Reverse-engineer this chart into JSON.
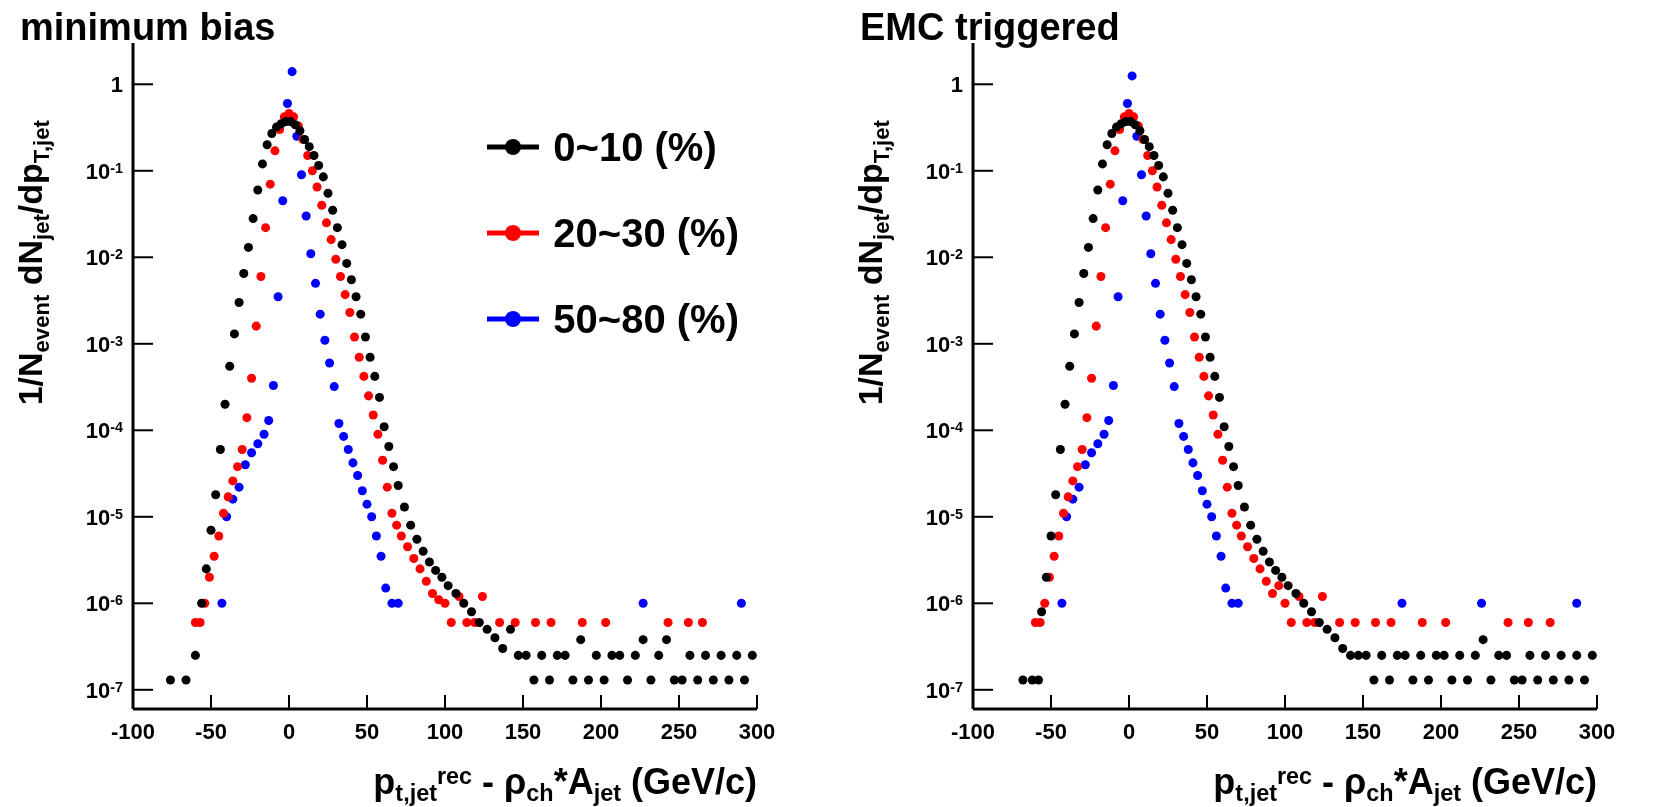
{
  "chart_data": [
    {
      "type": "scatter",
      "title": "minimum bias",
      "xlabel": "p$_{t,jet}$$^{rec}$ - ρ$_{ch}$*A$_{jet}$ (GeV/c)",
      "ylabel": "1/N$_{event}$ dN$_{jet}$/dp$_{T,jet}$",
      "log": "y",
      "marker": "circle",
      "legend": "top right",
      "xlim": [
        -100,
        300
      ],
      "xticks": [
        -100,
        -50,
        0,
        50,
        100,
        150,
        200,
        250,
        300
      ],
      "ylim": [
        6e-08,
        3
      ],
      "yticks": [
        {
          "value": 1e-07,
          "label": "10$^{-7}$"
        },
        {
          "value": 1e-06,
          "label": "10$^{-6}$"
        },
        {
          "value": 1e-05,
          "label": "10$^{-5}$"
        },
        {
          "value": 0.0001,
          "label": "10$^{-4}$"
        },
        {
          "value": 0.001,
          "label": "10$^{-3}$"
        },
        {
          "value": 0.01,
          "label": "10$^{-2}$"
        },
        {
          "value": 0.1,
          "label": "10$^{-1}$"
        },
        1
      ],
      "series": [
        {
          "name": "0~10 (%)",
          "color": "#000000",
          "x": [
            -76,
            -66,
            -60,
            -56,
            -53,
            -50,
            -47,
            -44,
            -41,
            -38,
            -35,
            -32,
            -29,
            -26,
            -23,
            -20,
            -17,
            -14,
            -11,
            -8,
            -5,
            -2,
            1,
            4,
            7,
            10,
            13,
            16,
            19,
            22,
            25,
            28,
            31,
            34,
            37,
            40,
            43,
            46,
            49,
            52,
            55,
            58,
            61,
            64,
            67,
            70,
            74,
            78,
            82,
            86,
            90,
            94,
            98,
            102,
            107,
            112,
            117,
            122,
            127,
            132,
            137,
            142,
            147,
            152,
            157,
            162,
            167,
            172,
            177,
            182,
            187,
            192,
            197,
            202,
            207,
            212,
            217,
            222,
            227,
            232,
            237,
            242,
            247,
            252,
            257,
            262,
            267,
            272,
            277,
            282,
            287,
            292,
            297
          ],
          "values": [
            1.3e-07,
            1.3e-07,
            2.5e-07,
            1e-06,
            2.5e-06,
            7e-06,
            1.8e-05,
            6e-05,
            0.0002,
            0.00055,
            0.0013,
            0.003,
            0.0065,
            0.013,
            0.028,
            0.06,
            0.12,
            0.2,
            0.27,
            0.32,
            0.35,
            0.37,
            0.37,
            0.34,
            0.29,
            0.23,
            0.19,
            0.15,
            0.115,
            0.085,
            0.055,
            0.035,
            0.022,
            0.014,
            0.0085,
            0.0055,
            0.0035,
            0.0022,
            0.0012,
            0.0007,
            0.00042,
            0.00024,
            0.00011,
            6.5e-05,
            3.8e-05,
            2.3e-05,
            1.3e-05,
            8e-06,
            5.5e-06,
            4e-06,
            3e-06,
            2.4e-06,
            2e-06,
            1.6e-06,
            1.3e-06,
            1e-06,
            8e-07,
            6e-07,
            5e-07,
            4e-07,
            3e-07,
            5e-07,
            2.5e-07,
            2.5e-07,
            1.3e-07,
            2.5e-07,
            1.3e-07,
            2.5e-07,
            2.5e-07,
            1.3e-07,
            3.8e-07,
            1.3e-07,
            2.5e-07,
            1.3e-07,
            2.5e-07,
            2.5e-07,
            1.3e-07,
            2.5e-07,
            3.8e-07,
            1.3e-07,
            2.5e-07,
            3.8e-07,
            1.3e-07,
            1.3e-07,
            2.5e-07,
            1.3e-07,
            2.5e-07,
            1.3e-07,
            2.5e-07,
            1.3e-07,
            2.5e-07,
            1.3e-07,
            2.5e-07
          ]
        },
        {
          "name": "20~30 (%)",
          "color": "#ff0000",
          "x": [
            -60,
            -57,
            -54,
            -51,
            -48,
            -45,
            -42,
            -39,
            -36,
            -33,
            -30,
            -27,
            -24,
            -21,
            -18,
            -15,
            -12,
            -9,
            -6,
            -3,
            0,
            3,
            6,
            9,
            12,
            15,
            18,
            21,
            24,
            27,
            30,
            33,
            36,
            39,
            42,
            45,
            48,
            51,
            54,
            57,
            60,
            63,
            66,
            69,
            72,
            76,
            80,
            84,
            88,
            92,
            96,
            100,
            104,
            109,
            114,
            119,
            124,
            135,
            145,
            158,
            168,
            188,
            203,
            243,
            256,
            265
          ],
          "values": [
            6e-07,
            6e-07,
            1e-06,
            2e-06,
            3.5e-06,
            6e-06,
            1.1e-05,
            1.7e-05,
            2.6e-05,
            3.8e-05,
            6e-05,
            0.00014,
            0.0004,
            0.0016,
            0.006,
            0.022,
            0.07,
            0.17,
            0.3,
            0.42,
            0.46,
            0.42,
            0.33,
            0.23,
            0.15,
            0.1,
            0.065,
            0.04,
            0.025,
            0.016,
            0.0095,
            0.006,
            0.0037,
            0.0023,
            0.0012,
            0.0007,
            0.00042,
            0.00025,
            0.00015,
            9e-05,
            4.5e-05,
            2.2e-05,
            1.1e-05,
            8e-06,
            6e-06,
            4.5e-06,
            3.3e-06,
            2.5e-06,
            1.8e-06,
            1.3e-06,
            1.1e-06,
            1e-06,
            6e-07,
            1.2e-06,
            6e-07,
            6e-07,
            1.2e-06,
            6e-07,
            6e-07,
            6e-07,
            6e-07,
            6e-07,
            6e-07,
            6e-07,
            6e-07,
            6e-07
          ]
        },
        {
          "name": "50~80 (%)",
          "color": "#0000ff",
          "x": [
            -43,
            -40,
            -36,
            -32,
            -28,
            -24,
            -20,
            -16,
            -13,
            -10,
            -7,
            -4,
            -1,
            2,
            5,
            8,
            11,
            14,
            17,
            20,
            23,
            26,
            29,
            32,
            35,
            38,
            41,
            44,
            47,
            50,
            53,
            56,
            59,
            62,
            66,
            70,
            227,
            290
          ],
          "values": [
            1e-06,
            1e-05,
            1.6e-05,
            2.2e-05,
            4e-05,
            5.5e-05,
            7e-05,
            9e-05,
            0.00013,
            0.00033,
            0.0035,
            0.045,
            0.6,
            1.4,
            0.25,
            0.09,
            0.03,
            0.011,
            0.005,
            0.0022,
            0.0011,
            0.0006,
            0.00032,
            0.00012,
            8.5e-05,
            6e-05,
            4.2e-05,
            3e-05,
            2e-05,
            1.4e-05,
            1e-05,
            6e-06,
            3.5e-06,
            1.5e-06,
            1e-06,
            1e-06,
            1e-06,
            1e-06
          ]
        }
      ]
    },
    {
      "type": "scatter",
      "title": "EMC triggered",
      "xlabel": "p$_{t,jet}$$^{rec}$ - ρ$_{ch}$*A$_{jet}$ (GeV/c)",
      "ylabel": "1/N$_{event}$ dN$_{jet}$/dp$_{T,jet}$",
      "log": "y",
      "marker": "circle",
      "xlim": [
        -100,
        300
      ],
      "xticks": [
        -100,
        -50,
        0,
        50,
        100,
        150,
        200,
        250,
        300
      ],
      "ylim": [
        6e-08,
        3
      ],
      "yticks": [
        {
          "value": 1e-07,
          "label": "10$^{-7}$"
        },
        {
          "value": 1e-06,
          "label": "10$^{-6}$"
        },
        {
          "value": 1e-05,
          "label": "10$^{-5}$"
        },
        {
          "value": 0.0001,
          "label": "10$^{-4}$"
        },
        {
          "value": 0.001,
          "label": "10$^{-3}$"
        },
        {
          "value": 0.01,
          "label": "10$^{-2}$"
        },
        {
          "value": 0.1,
          "label": "10$^{-1}$"
        },
        1
      ],
      "series": [
        {
          "color": "#000000",
          "x": [
            -68,
            -62,
            -58,
            -56,
            -53,
            -50,
            -47,
            -44,
            -41,
            -38,
            -35,
            -32,
            -29,
            -26,
            -23,
            -20,
            -17,
            -14,
            -11,
            -8,
            -5,
            -2,
            1,
            4,
            7,
            10,
            13,
            16,
            19,
            22,
            25,
            28,
            31,
            34,
            37,
            40,
            43,
            46,
            49,
            52,
            55,
            58,
            61,
            64,
            67,
            70,
            74,
            78,
            82,
            86,
            90,
            94,
            98,
            102,
            107,
            112,
            117,
            122,
            127,
            132,
            137,
            142,
            147,
            152,
            157,
            162,
            167,
            172,
            177,
            182,
            187,
            192,
            197,
            202,
            207,
            212,
            217,
            222,
            227,
            232,
            237,
            242,
            247,
            252,
            257,
            262,
            267,
            272,
            277,
            282,
            287,
            292,
            297
          ],
          "values": [
            1.3e-07,
            1.3e-07,
            1.3e-07,
            8e-07,
            2e-06,
            6e-06,
            1.8e-05,
            6e-05,
            0.0002,
            0.00055,
            0.0013,
            0.003,
            0.0065,
            0.013,
            0.028,
            0.06,
            0.12,
            0.2,
            0.27,
            0.32,
            0.35,
            0.37,
            0.37,
            0.34,
            0.29,
            0.23,
            0.19,
            0.15,
            0.115,
            0.085,
            0.055,
            0.035,
            0.022,
            0.014,
            0.0085,
            0.0055,
            0.0035,
            0.0022,
            0.0012,
            0.0007,
            0.00042,
            0.00024,
            0.00011,
            6.5e-05,
            3.8e-05,
            2.3e-05,
            1.3e-05,
            8e-06,
            5.5e-06,
            4e-06,
            3e-06,
            2.4e-06,
            2e-06,
            1.6e-06,
            1.3e-06,
            1e-06,
            8e-07,
            6e-07,
            5e-07,
            4e-07,
            3e-07,
            2.5e-07,
            2.5e-07,
            2.5e-07,
            1.3e-07,
            2.5e-07,
            1.3e-07,
            2.5e-07,
            2.5e-07,
            1.3e-07,
            2.5e-07,
            1.3e-07,
            2.5e-07,
            2.5e-07,
            1.3e-07,
            2.5e-07,
            1.3e-07,
            2.5e-07,
            3.8e-07,
            1.3e-07,
            2.5e-07,
            2.5e-07,
            1.3e-07,
            1.3e-07,
            2.5e-07,
            1.3e-07,
            2.5e-07,
            1.3e-07,
            2.5e-07,
            1.3e-07,
            2.5e-07,
            1.3e-07,
            2.5e-07
          ]
        },
        {
          "color": "#ff0000",
          "x": [
            -60,
            -57,
            -54,
            -51,
            -48,
            -45,
            -42,
            -39,
            -36,
            -33,
            -30,
            -27,
            -24,
            -21,
            -18,
            -15,
            -12,
            -9,
            -6,
            -3,
            0,
            3,
            6,
            9,
            12,
            15,
            18,
            21,
            24,
            27,
            30,
            33,
            36,
            39,
            42,
            45,
            48,
            51,
            54,
            57,
            60,
            63,
            66,
            69,
            72,
            76,
            80,
            84,
            88,
            92,
            96,
            100,
            104,
            109,
            114,
            119,
            124,
            135,
            145,
            158,
            168,
            188,
            203,
            243,
            256,
            270
          ],
          "values": [
            6e-07,
            6e-07,
            1e-06,
            2e-06,
            3.5e-06,
            6e-06,
            1.1e-05,
            1.7e-05,
            2.6e-05,
            3.8e-05,
            6e-05,
            0.00014,
            0.0004,
            0.0016,
            0.006,
            0.022,
            0.07,
            0.17,
            0.3,
            0.42,
            0.46,
            0.42,
            0.33,
            0.23,
            0.15,
            0.1,
            0.065,
            0.04,
            0.025,
            0.016,
            0.0095,
            0.006,
            0.0037,
            0.0023,
            0.0012,
            0.0007,
            0.00042,
            0.00025,
            0.00015,
            9e-05,
            4.5e-05,
            2.2e-05,
            1.1e-05,
            8e-06,
            6e-06,
            4.5e-06,
            3.3e-06,
            2.5e-06,
            1.8e-06,
            1.3e-06,
            1.6e-06,
            1e-06,
            6e-07,
            1.2e-06,
            6e-07,
            6e-07,
            1.2e-06,
            6e-07,
            6e-07,
            6e-07,
            6e-07,
            6e-07,
            6e-07,
            6e-07,
            6e-07,
            6e-07
          ]
        },
        {
          "color": "#0000ff",
          "x": [
            -43,
            -40,
            -36,
            -32,
            -28,
            -24,
            -20,
            -16,
            -13,
            -10,
            -7,
            -4,
            -1,
            2,
            5,
            8,
            11,
            14,
            17,
            20,
            23,
            26,
            29,
            32,
            35,
            38,
            41,
            44,
            47,
            50,
            53,
            56,
            59,
            62,
            66,
            70,
            175,
            226,
            287
          ],
          "values": [
            1e-06,
            1e-05,
            1.6e-05,
            2.2e-05,
            4e-05,
            5.5e-05,
            7e-05,
            9e-05,
            0.00013,
            0.00033,
            0.0035,
            0.045,
            0.6,
            1.25,
            0.25,
            0.09,
            0.03,
            0.011,
            0.005,
            0.0022,
            0.0011,
            0.0006,
            0.00032,
            0.00012,
            8.5e-05,
            6e-05,
            4.2e-05,
            3e-05,
            2e-05,
            1.4e-05,
            1e-05,
            6e-06,
            3.5e-06,
            1.5e-06,
            1e-06,
            1e-06,
            1e-06,
            1e-06,
            1e-06
          ]
        }
      ]
    }
  ]
}
